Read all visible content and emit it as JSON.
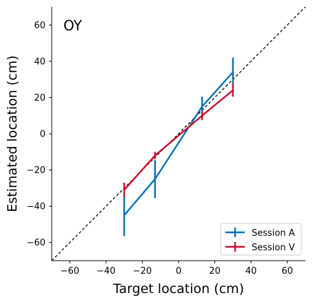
{
  "chart_data": {
    "type": "line",
    "panel_label": "OY",
    "xlabel": "Target location (cm)",
    "ylabel": "Estimated location (cm)",
    "xlim": [
      -70,
      70
    ],
    "ylim": [
      -70,
      70
    ],
    "xticks": [
      -60,
      -40,
      -20,
      0,
      20,
      40,
      60
    ],
    "yticks": [
      -60,
      -40,
      -20,
      0,
      20,
      40,
      60
    ],
    "xtick_labels": [
      "−60",
      "−40",
      "−20",
      "0",
      "20",
      "40",
      "60"
    ],
    "ytick_labels": [
      "−60",
      "−40",
      "−20",
      "0",
      "20",
      "40",
      "60"
    ],
    "grid": false,
    "reference_line": "identity (dashed)",
    "legend_position": "bottom-right",
    "series": [
      {
        "name": "Session A",
        "color": "#0072b2",
        "x": [
          -30,
          -13,
          13,
          30
        ],
        "y": [
          -45,
          -25,
          15,
          34
        ],
        "err": [
          11.5,
          10.5,
          5.5,
          8
        ]
      },
      {
        "name": "Session V",
        "color": "#c8102e",
        "x": [
          -30,
          -13,
          13,
          30
        ],
        "y": [
          -31,
          -12,
          10,
          24
        ],
        "err": [
          4,
          2,
          2.5,
          3.5
        ]
      }
    ]
  }
}
